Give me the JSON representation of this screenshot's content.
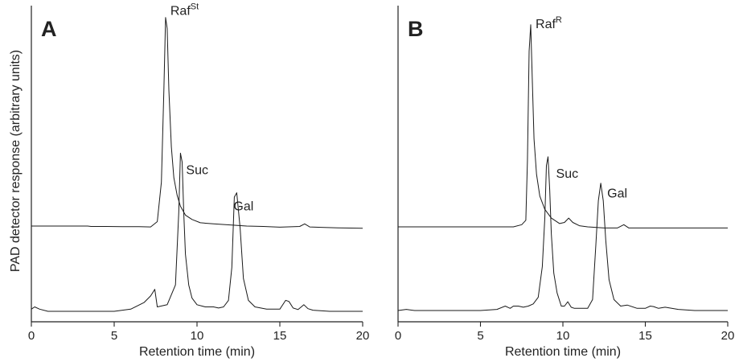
{
  "ylabel": "PAD detector response (arbitrary units)",
  "chart_data": [
    {
      "type": "line",
      "panel": "A",
      "xlabel": "Retention time (min)",
      "ylabel": "PAD detector response (arbitrary units)",
      "xlim": [
        0,
        20
      ],
      "xticks": [
        "0",
        "5",
        "10",
        "15",
        "20"
      ],
      "y_axis_ticks": "none",
      "grid": false,
      "series": [
        {
          "x": [
            0.0,
            0.8,
            1.5,
            2.5,
            3.4,
            3.6,
            4.5,
            5.5,
            6.5,
            7.2,
            7.6,
            7.85,
            8.0,
            8.1,
            8.2,
            8.3,
            8.45,
            8.6,
            8.8,
            9.0,
            9.3,
            9.7,
            10.2,
            11.0,
            12.0,
            13.0,
            14.0,
            15.0,
            16.2,
            16.5,
            16.8,
            17.5,
            18.5,
            20.0
          ],
          "y": [
            0.0,
            0.0,
            0.0,
            0.0,
            0.0,
            -0.002,
            -0.002,
            -0.003,
            -0.003,
            -0.004,
            0.02,
            0.2,
            0.62,
            0.95,
            0.9,
            0.62,
            0.36,
            0.22,
            0.14,
            0.09,
            0.05,
            0.03,
            0.015,
            0.01,
            0.005,
            0.0,
            -0.002,
            -0.005,
            -0.002,
            0.01,
            -0.004,
            -0.006,
            -0.008,
            -0.01
          ]
        },
        {
          "x": [
            0.0,
            0.2,
            0.5,
            1.0,
            2.0,
            3.5,
            5.0,
            6.0,
            6.8,
            7.2,
            7.45,
            7.6,
            8.2,
            8.7,
            8.9,
            9.0,
            9.1,
            9.2,
            9.3,
            9.5,
            9.7,
            10.0,
            10.5,
            11.0,
            11.3,
            11.6,
            11.9,
            12.1,
            12.25,
            12.4,
            12.6,
            12.8,
            13.1,
            13.5,
            14.2,
            15.0,
            15.35,
            15.55,
            15.8,
            16.1,
            16.45,
            16.7,
            17.0,
            18.0,
            19.0,
            20.0
          ],
          "y": [
            0.01,
            0.02,
            0.01,
            0.0,
            0.0,
            0.0,
            0.0,
            0.01,
            0.04,
            0.07,
            0.1,
            0.02,
            0.03,
            0.12,
            0.45,
            0.72,
            0.68,
            0.45,
            0.26,
            0.12,
            0.06,
            0.03,
            0.02,
            0.02,
            0.015,
            0.02,
            0.05,
            0.2,
            0.52,
            0.54,
            0.38,
            0.15,
            0.05,
            0.02,
            0.01,
            0.01,
            0.05,
            0.045,
            0.015,
            0.008,
            0.03,
            0.012,
            0.005,
            0.0,
            0.0,
            0.0
          ]
        }
      ],
      "annotations": [
        {
          "text": "Raf",
          "superscript": "St",
          "x": 8.15,
          "y": 0.95
        },
        {
          "text": "Suc",
          "x": 9.05,
          "y": 0.72
        },
        {
          "text": "Gal",
          "x": 12.3,
          "y": 0.54
        }
      ]
    },
    {
      "type": "line",
      "panel": "B",
      "xlabel": "Retention time (min)",
      "xlim": [
        0,
        20
      ],
      "xticks": [
        "0",
        "5",
        "10",
        "15",
        "20"
      ],
      "y_axis_ticks": "none",
      "grid": false,
      "series": [
        {
          "x": [
            0.0,
            1.0,
            2.0,
            3.0,
            4.0,
            5.0,
            6.0,
            7.0,
            7.5,
            7.75,
            7.85,
            7.95,
            8.05,
            8.15,
            8.25,
            8.4,
            8.6,
            8.9,
            9.3,
            9.8,
            10.1,
            10.35,
            10.6,
            11.0,
            11.5,
            12.5,
            13.3,
            13.7,
            14.0,
            15.0,
            16.0,
            17.0,
            18.0,
            19.0,
            20.0
          ],
          "y": [
            0.0,
            0.0,
            0.0,
            0.0,
            0.0,
            0.0,
            0.0,
            0.0,
            0.01,
            0.03,
            0.3,
            0.8,
            0.92,
            0.65,
            0.4,
            0.24,
            0.14,
            0.08,
            0.04,
            0.015,
            0.02,
            0.04,
            0.02,
            0.005,
            0.0,
            -0.005,
            -0.005,
            0.01,
            -0.005,
            -0.005,
            -0.005,
            -0.005,
            -0.005,
            -0.005,
            -0.005
          ]
        },
        {
          "x": [
            0.0,
            0.5,
            1.0,
            2.0,
            3.0,
            4.0,
            5.0,
            6.0,
            6.5,
            6.8,
            7.0,
            7.3,
            7.6,
            7.9,
            8.2,
            8.5,
            8.75,
            8.9,
            9.0,
            9.1,
            9.2,
            9.3,
            9.45,
            9.65,
            9.9,
            10.1,
            10.3,
            10.5,
            10.7,
            11.0,
            11.5,
            11.8,
            12.0,
            12.15,
            12.3,
            12.45,
            12.6,
            12.8,
            13.1,
            13.5,
            13.9,
            14.5,
            15.0,
            15.3,
            15.5,
            15.8,
            16.2,
            16.6,
            17.0,
            18.0,
            19.0,
            20.0
          ],
          "y": [
            0.0,
            0.005,
            0.0,
            0.0,
            0.0,
            0.0,
            0.0,
            0.005,
            0.02,
            0.01,
            0.02,
            0.02,
            0.015,
            0.02,
            0.03,
            0.06,
            0.2,
            0.42,
            0.66,
            0.7,
            0.55,
            0.35,
            0.17,
            0.08,
            0.02,
            0.02,
            0.04,
            0.015,
            0.01,
            0.01,
            0.01,
            0.05,
            0.3,
            0.5,
            0.58,
            0.5,
            0.32,
            0.14,
            0.05,
            0.02,
            0.025,
            0.01,
            0.01,
            0.02,
            0.018,
            0.01,
            0.015,
            0.01,
            0.005,
            0.0,
            0.0,
            0.0
          ]
        }
      ],
      "annotations": [
        {
          "text": "Raf",
          "superscript": "R",
          "x": 8.05,
          "y": 0.92
        },
        {
          "text": "Suc",
          "x": 9.1,
          "y": 0.7
        },
        {
          "text": "Gal",
          "x": 12.3,
          "y": 0.58
        }
      ]
    }
  ]
}
